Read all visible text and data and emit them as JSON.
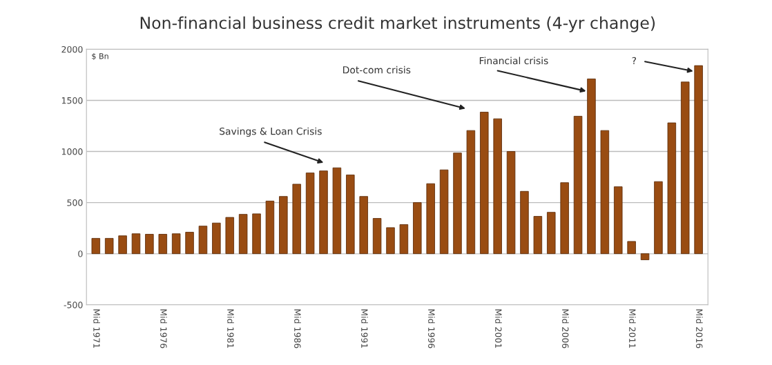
{
  "chart_data": {
    "type": "bar",
    "title": "Non-financial business credit market instruments (4-yr change)",
    "ylabel": "$ Bn",
    "categories": [
      "Mid 1971",
      null,
      null,
      null,
      null,
      "Mid 1976",
      null,
      null,
      null,
      null,
      "Mid 1981",
      null,
      null,
      null,
      null,
      "Mid 1986",
      null,
      null,
      null,
      null,
      "Mid 1991",
      null,
      null,
      null,
      null,
      "Mid 1996",
      null,
      null,
      null,
      null,
      "Mid 2001",
      null,
      null,
      null,
      null,
      "Mid 2006",
      null,
      null,
      null,
      null,
      "Mid 2011",
      null,
      null,
      null,
      null,
      "Mid 2016"
    ],
    "values": [
      150,
      150,
      175,
      195,
      190,
      190,
      195,
      210,
      270,
      300,
      355,
      385,
      390,
      515,
      560,
      680,
      790,
      810,
      840,
      770,
      560,
      345,
      255,
      285,
      500,
      685,
      820,
      985,
      1205,
      1385,
      1320,
      1000,
      610,
      365,
      405,
      695,
      1345,
      1710,
      1205,
      655,
      120,
      -60,
      705,
      1280,
      1680,
      1840
    ],
    "color": "#994c12",
    "ylim": [
      -500,
      2000
    ],
    "yticks": [
      -500,
      0,
      500,
      1000,
      1500,
      2000
    ],
    "grid": "y",
    "annotations": [
      "Savings & Loan Crisis",
      "Dot-com crisis",
      "Financial crisis",
      "?"
    ]
  }
}
